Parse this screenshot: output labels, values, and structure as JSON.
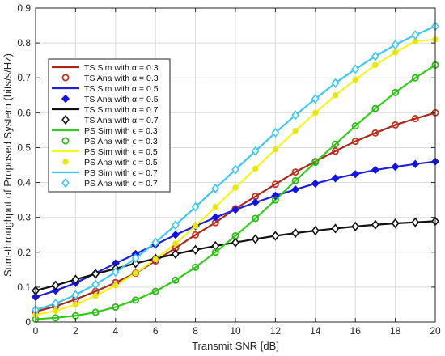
{
  "chart_data": {
    "type": "line",
    "xlabel": "Transmit SNR [dB]",
    "ylabel": "Sum-throughput of Proposed System (bits/s/Hz)",
    "xlim": [
      0,
      20
    ],
    "ylim": [
      0,
      0.9
    ],
    "xticks": [
      0,
      2,
      4,
      6,
      8,
      10,
      12,
      14,
      16,
      18,
      20
    ],
    "yticks": [
      0,
      0.1,
      0.2,
      0.3,
      0.4,
      0.5,
      0.6,
      0.7,
      0.8,
      0.9
    ],
    "ytick_labels": [
      "0",
      "0.1",
      "0.2",
      "0.3",
      "0.4",
      "0.5",
      "0.6",
      "0.7",
      "0.8",
      "0.9"
    ],
    "grid": true,
    "legend_position": "upper-left",
    "x": [
      0,
      1,
      2,
      3,
      4,
      5,
      6,
      7,
      8,
      9,
      10,
      11,
      12,
      13,
      14,
      15,
      16,
      17,
      18,
      19,
      20
    ],
    "series": [
      {
        "name": "TS Sim with α = 0.3",
        "style": "line",
        "color": "#a52a1a",
        "values": [
          0.03,
          0.045,
          0.065,
          0.088,
          0.113,
          0.14,
          0.175,
          0.212,
          0.25,
          0.285,
          0.325,
          0.36,
          0.395,
          0.43,
          0.46,
          0.49,
          0.518,
          0.542,
          0.565,
          0.583,
          0.6
        ]
      },
      {
        "name": "TS Ana with α = 0.3",
        "style": "marker",
        "marker": "circle",
        "color": "#c8321e",
        "values": [
          0.03,
          0.045,
          0.065,
          0.088,
          0.113,
          0.14,
          0.175,
          0.212,
          0.25,
          0.285,
          0.325,
          0.36,
          0.395,
          0.43,
          0.46,
          0.49,
          0.518,
          0.542,
          0.565,
          0.583,
          0.6
        ]
      },
      {
        "name": "TS Sim with α = 0.5",
        "style": "line",
        "color": "#1f1fd6",
        "values": [
          0.072,
          0.09,
          0.112,
          0.14,
          0.168,
          0.195,
          0.222,
          0.25,
          0.275,
          0.3,
          0.322,
          0.343,
          0.362,
          0.38,
          0.397,
          0.412,
          0.424,
          0.436,
          0.445,
          0.453,
          0.46
        ]
      },
      {
        "name": "TS Ana with α = 0.5",
        "style": "marker",
        "marker": "diamond-filled",
        "color": "#1414e0",
        "values": [
          0.072,
          0.09,
          0.112,
          0.14,
          0.168,
          0.195,
          0.222,
          0.25,
          0.275,
          0.3,
          0.322,
          0.343,
          0.362,
          0.38,
          0.397,
          0.412,
          0.424,
          0.436,
          0.445,
          0.453,
          0.46
        ]
      },
      {
        "name": "TS Sim with α = 0.7",
        "style": "line",
        "color": "#111111",
        "values": [
          0.09,
          0.105,
          0.122,
          0.138,
          0.153,
          0.168,
          0.182,
          0.195,
          0.207,
          0.218,
          0.228,
          0.238,
          0.247,
          0.255,
          0.262,
          0.268,
          0.274,
          0.279,
          0.283,
          0.286,
          0.289
        ]
      },
      {
        "name": "TS Ana with α = 0.7",
        "style": "marker",
        "marker": "diamond-open",
        "color": "#111111",
        "values": [
          0.09,
          0.105,
          0.122,
          0.138,
          0.153,
          0.168,
          0.182,
          0.195,
          0.207,
          0.218,
          0.228,
          0.238,
          0.247,
          0.255,
          0.262,
          0.268,
          0.274,
          0.279,
          0.283,
          0.286,
          0.289
        ]
      },
      {
        "name": "PS Sim with ϵ = 0.3",
        "style": "line",
        "color": "#33cc1a",
        "values": [
          0.008,
          0.012,
          0.018,
          0.028,
          0.043,
          0.063,
          0.088,
          0.12,
          0.157,
          0.2,
          0.247,
          0.297,
          0.35,
          0.405,
          0.458,
          0.51,
          0.562,
          0.612,
          0.658,
          0.7,
          0.737
        ]
      },
      {
        "name": "PS Ana with ϵ = 0.3",
        "style": "marker",
        "marker": "circle",
        "color": "#2eb81a",
        "values": [
          0.008,
          0.012,
          0.018,
          0.028,
          0.043,
          0.063,
          0.088,
          0.12,
          0.157,
          0.2,
          0.247,
          0.297,
          0.35,
          0.405,
          0.458,
          0.51,
          0.562,
          0.612,
          0.658,
          0.7,
          0.737
        ]
      },
      {
        "name": "PS Sim with ϵ = 0.5",
        "style": "line",
        "color": "#f5f520",
        "values": [
          0.02,
          0.032,
          0.05,
          0.075,
          0.105,
          0.14,
          0.18,
          0.225,
          0.275,
          0.33,
          0.385,
          0.44,
          0.495,
          0.548,
          0.6,
          0.65,
          0.695,
          0.737,
          0.773,
          0.805,
          0.81
        ]
      },
      {
        "name": "PS Ana with ϵ = 0.5",
        "style": "marker",
        "marker": "dot",
        "color": "#e6e614",
        "values": [
          0.02,
          0.032,
          0.05,
          0.075,
          0.105,
          0.14,
          0.18,
          0.225,
          0.275,
          0.33,
          0.385,
          0.44,
          0.495,
          0.548,
          0.6,
          0.65,
          0.695,
          0.737,
          0.773,
          0.805,
          0.81
        ]
      },
      {
        "name": "PS Sim with ϵ = 0.7",
        "style": "line",
        "color": "#3ec8ee",
        "values": [
          0.035,
          0.053,
          0.078,
          0.108,
          0.143,
          0.183,
          0.228,
          0.278,
          0.33,
          0.383,
          0.437,
          0.49,
          0.543,
          0.593,
          0.64,
          0.685,
          0.725,
          0.762,
          0.795,
          0.823,
          0.848
        ]
      },
      {
        "name": "PS Ana with ϵ = 0.7",
        "style": "marker",
        "marker": "diamond-open",
        "color": "#3ec8ee",
        "values": [
          0.035,
          0.053,
          0.078,
          0.108,
          0.143,
          0.183,
          0.228,
          0.278,
          0.33,
          0.383,
          0.437,
          0.49,
          0.543,
          0.593,
          0.64,
          0.685,
          0.725,
          0.762,
          0.795,
          0.823,
          0.848
        ]
      }
    ]
  }
}
